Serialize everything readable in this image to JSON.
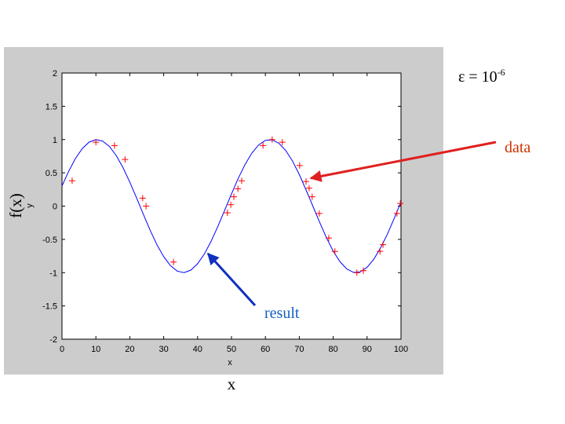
{
  "chart_data": {
    "type": "line",
    "x_label": "x",
    "y_label": "y",
    "xlim": [
      0,
      100
    ],
    "ylim": [
      -2,
      2
    ],
    "xticks": [
      0,
      10,
      20,
      30,
      40,
      50,
      60,
      70,
      80,
      90,
      100
    ],
    "yticks": [
      -2,
      -1.5,
      -1,
      -0.5,
      0,
      0.5,
      1,
      1.5,
      2
    ],
    "series": [
      {
        "color": "#0000ff",
        "marker": "none",
        "x": [
          0,
          2,
          4,
          6,
          8,
          10,
          12,
          14,
          16,
          18,
          20,
          22,
          24,
          26,
          28,
          30,
          32,
          34,
          36,
          38,
          40,
          42,
          44,
          46,
          48,
          50,
          52,
          54,
          56,
          58,
          60,
          62,
          64,
          66,
          68,
          70,
          72,
          74,
          76,
          78,
          80,
          82,
          84,
          86,
          88,
          90,
          92,
          94,
          96,
          98,
          100
        ],
        "values": [
          0.303,
          0.526,
          0.718,
          0.866,
          0.962,
          0.9995,
          0.977,
          0.896,
          0.76,
          0.578,
          0.361,
          0.123,
          -0.123,
          -0.362,
          -0.58,
          -0.759,
          -0.894,
          -0.977,
          -0.9995,
          -0.962,
          -0.866,
          -0.72,
          -0.527,
          -0.303,
          -0.061,
          0.184,
          0.418,
          0.626,
          0.796,
          0.919,
          0.988,
          0.996,
          0.944,
          0.836,
          0.677,
          0.475,
          0.242,
          0.0,
          -0.242,
          -0.474,
          -0.677,
          -0.835,
          -0.944,
          -0.996,
          -0.988,
          -0.92,
          -0.797,
          -0.625,
          -0.42,
          -0.184,
          0.062
        ]
      },
      {
        "color": "#ff0000",
        "marker": "+",
        "x": [
          3,
          10,
          15.5,
          18.6,
          23.8,
          24.8,
          32.9,
          48.8,
          49.8,
          50.7,
          51.9,
          53,
          59.3,
          62,
          65,
          70.1,
          72,
          72.9,
          73.8,
          75.9,
          78.7,
          80.5,
          87,
          88.9,
          93.8,
          94.7,
          98.8,
          99.8
        ],
        "values": [
          0.38,
          0.96,
          0.91,
          0.7,
          0.12,
          0.0,
          -0.84,
          -0.1,
          0.02,
          0.14,
          0.26,
          0.38,
          0.91,
          1.0,
          0.96,
          0.61,
          0.37,
          0.27,
          0.14,
          -0.11,
          -0.48,
          -0.68,
          -1.0,
          -0.97,
          -0.68,
          -0.58,
          -0.11,
          0.04
        ]
      }
    ]
  },
  "slide": {
    "y_title": "f(x)",
    "x_title": "x",
    "note_base": "ε = 10",
    "note_exponent": "-6",
    "data_label": "data",
    "result_label": "result"
  }
}
